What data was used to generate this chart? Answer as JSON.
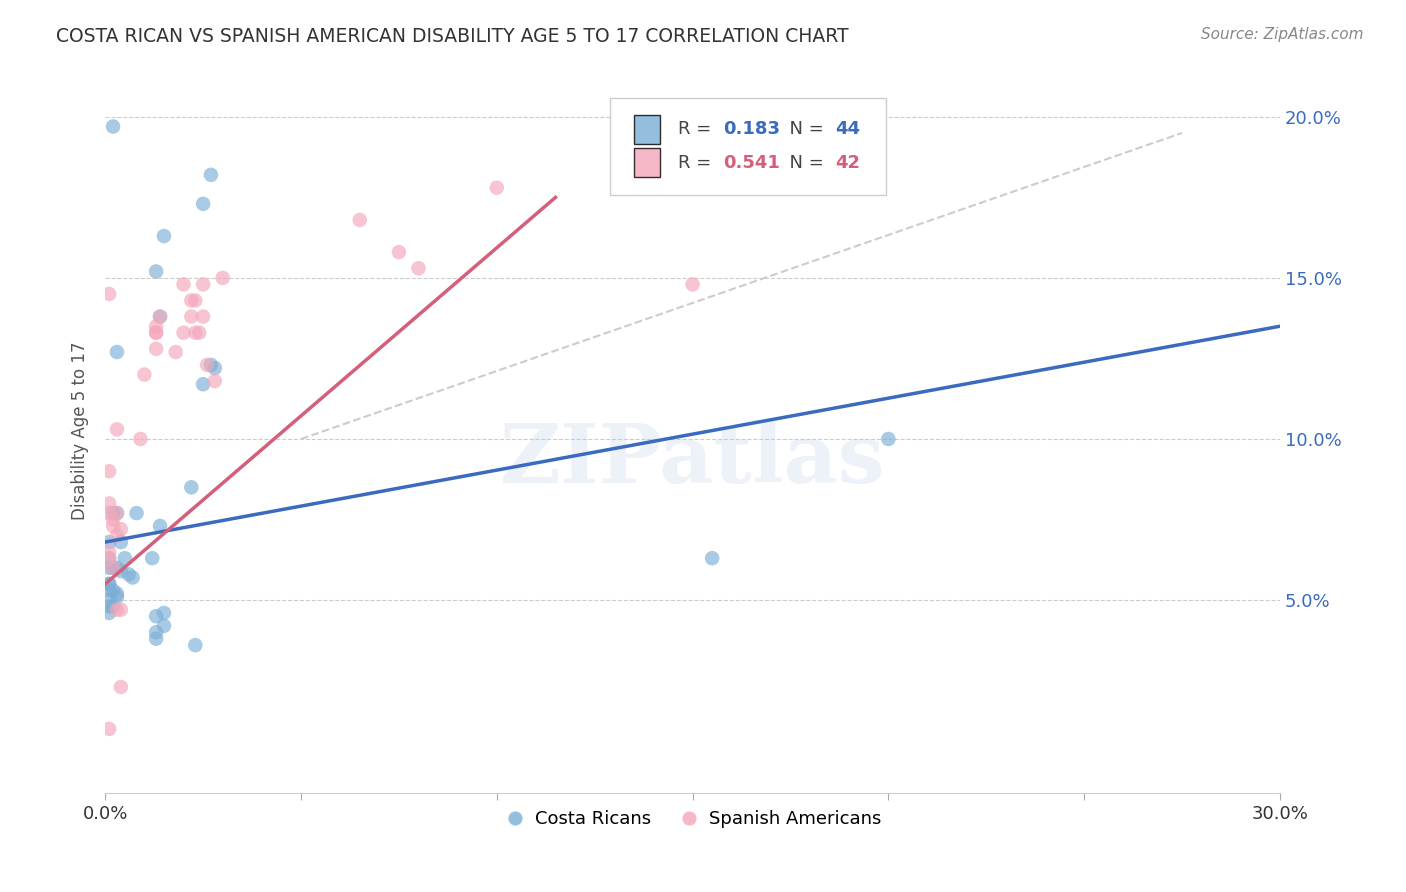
{
  "title": "COSTA RICAN VS SPANISH AMERICAN DISABILITY AGE 5 TO 17 CORRELATION CHART",
  "source": "Source: ZipAtlas.com",
  "ylabel": "Disability Age 5 to 17",
  "xlim": [
    0.0,
    0.3
  ],
  "ylim": [
    -0.01,
    0.215
  ],
  "yticks": [
    0.05,
    0.1,
    0.15,
    0.2
  ],
  "ytick_labels": [
    "5.0%",
    "10.0%",
    "15.0%",
    "20.0%"
  ],
  "xticks": [
    0.0,
    0.05,
    0.1,
    0.15,
    0.2,
    0.25,
    0.3
  ],
  "xtick_labels": [
    "0.0%",
    "",
    "",
    "",
    "",
    "",
    "30.0%"
  ],
  "legend_r_blue": "0.183",
  "legend_n_blue": "44",
  "legend_r_pink": "0.541",
  "legend_n_pink": "42",
  "legend_label_blue": "Costa Ricans",
  "legend_label_pink": "Spanish Americans",
  "blue_color": "#7aaed6",
  "pink_color": "#f4a7b9",
  "blue_line_color": "#3a6bbf",
  "pink_line_color": "#d45f7a",
  "diag_line_color": "#cccccc",
  "watermark_text": "ZIPatlas",
  "background_color": "#ffffff",
  "blue_scatter": [
    [
      0.002,
      0.197
    ],
    [
      0.015,
      0.163
    ],
    [
      0.013,
      0.152
    ],
    [
      0.027,
      0.182
    ],
    [
      0.025,
      0.173
    ],
    [
      0.014,
      0.138
    ],
    [
      0.003,
      0.127
    ],
    [
      0.028,
      0.122
    ],
    [
      0.027,
      0.123
    ],
    [
      0.025,
      0.117
    ],
    [
      0.022,
      0.085
    ],
    [
      0.002,
      0.077
    ],
    [
      0.003,
      0.077
    ],
    [
      0.008,
      0.077
    ],
    [
      0.014,
      0.073
    ],
    [
      0.001,
      0.068
    ],
    [
      0.004,
      0.068
    ],
    [
      0.005,
      0.063
    ],
    [
      0.001,
      0.063
    ],
    [
      0.012,
      0.063
    ],
    [
      0.001,
      0.06
    ],
    [
      0.002,
      0.06
    ],
    [
      0.003,
      0.06
    ],
    [
      0.004,
      0.059
    ],
    [
      0.006,
      0.058
    ],
    [
      0.007,
      0.057
    ],
    [
      0.001,
      0.055
    ],
    [
      0.001,
      0.055
    ],
    [
      0.001,
      0.053
    ],
    [
      0.002,
      0.053
    ],
    [
      0.003,
      0.052
    ],
    [
      0.003,
      0.051
    ],
    [
      0.001,
      0.05
    ],
    [
      0.001,
      0.048
    ],
    [
      0.002,
      0.048
    ],
    [
      0.001,
      0.046
    ],
    [
      0.015,
      0.046
    ],
    [
      0.013,
      0.045
    ],
    [
      0.015,
      0.042
    ],
    [
      0.013,
      0.04
    ],
    [
      0.013,
      0.038
    ],
    [
      0.023,
      0.036
    ],
    [
      0.2,
      0.1
    ],
    [
      0.155,
      0.063
    ]
  ],
  "pink_scatter": [
    [
      0.001,
      0.145
    ],
    [
      0.001,
      0.09
    ],
    [
      0.001,
      0.08
    ],
    [
      0.001,
      0.077
    ],
    [
      0.003,
      0.077
    ],
    [
      0.002,
      0.075
    ],
    [
      0.002,
      0.073
    ],
    [
      0.004,
      0.072
    ],
    [
      0.003,
      0.07
    ],
    [
      0.001,
      0.065
    ],
    [
      0.001,
      0.063
    ],
    [
      0.002,
      0.06
    ],
    [
      0.014,
      0.138
    ],
    [
      0.013,
      0.135
    ],
    [
      0.013,
      0.133
    ],
    [
      0.013,
      0.128
    ],
    [
      0.01,
      0.12
    ],
    [
      0.02,
      0.148
    ],
    [
      0.025,
      0.148
    ],
    [
      0.03,
      0.15
    ],
    [
      0.022,
      0.138
    ],
    [
      0.024,
      0.133
    ],
    [
      0.026,
      0.123
    ],
    [
      0.028,
      0.118
    ],
    [
      0.025,
      0.138
    ],
    [
      0.009,
      0.1
    ],
    [
      0.003,
      0.103
    ],
    [
      0.001,
      0.01
    ],
    [
      0.065,
      0.168
    ],
    [
      0.1,
      0.178
    ],
    [
      0.075,
      0.158
    ],
    [
      0.08,
      0.153
    ],
    [
      0.023,
      0.143
    ],
    [
      0.022,
      0.143
    ],
    [
      0.02,
      0.133
    ],
    [
      0.018,
      0.127
    ],
    [
      0.013,
      0.133
    ],
    [
      0.023,
      0.133
    ],
    [
      0.004,
      0.047
    ],
    [
      0.003,
      0.047
    ],
    [
      0.004,
      0.023
    ],
    [
      0.15,
      0.148
    ]
  ],
  "blue_trendline": {
    "x_start": 0.0,
    "x_end": 0.3,
    "y_start": 0.068,
    "y_end": 0.135
  },
  "pink_trendline": {
    "x_start": 0.0,
    "x_end": 0.115,
    "y_start": 0.055,
    "y_end": 0.175
  },
  "diag_trendline": {
    "x_start": 0.05,
    "x_end": 0.275,
    "y_start": 0.1,
    "y_end": 0.195
  }
}
